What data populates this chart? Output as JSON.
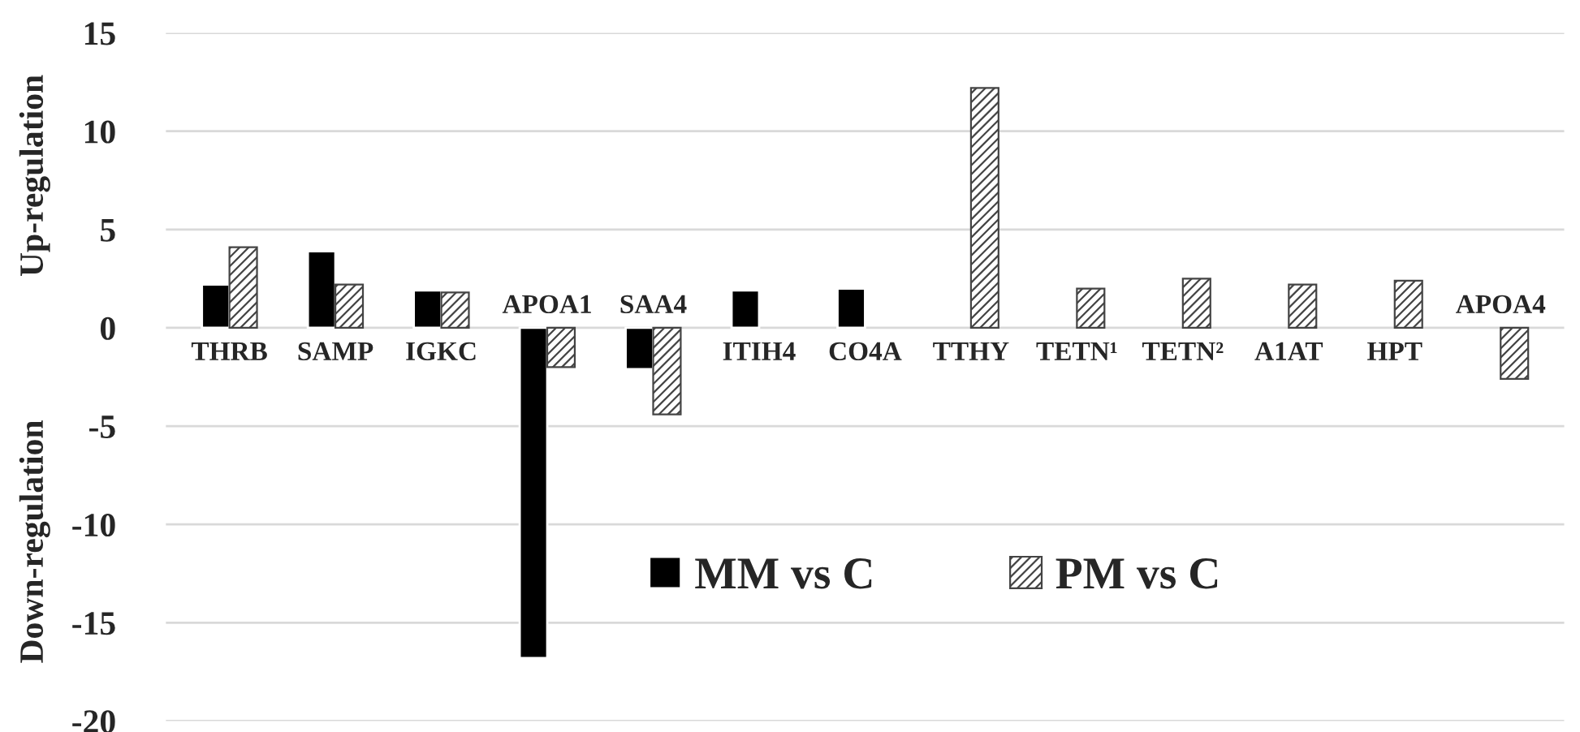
{
  "chart_data": {
    "type": "bar",
    "categories": [
      "THRB",
      "SAMP",
      "IGKC",
      "APOA1",
      "SAA4",
      "ITIH4",
      "CO4A",
      "TTHY",
      "TETN¹",
      "TETN²",
      "A1AT",
      "HPT",
      "APOA4"
    ],
    "series": [
      {
        "name": "MM vs C",
        "color": "#000000",
        "values": [
          2.2,
          3.9,
          1.9,
          -16.8,
          -2.1,
          1.9,
          2.0,
          null,
          null,
          null,
          null,
          null,
          null
        ]
      },
      {
        "name": "PM vs C",
        "color": "#444444",
        "values": [
          4.1,
          2.2,
          1.8,
          -2.0,
          -4.4,
          null,
          null,
          12.2,
          2.0,
          2.5,
          2.2,
          2.4,
          -2.6
        ]
      }
    ],
    "annotations": [
      "Up-regulation",
      "Down-regulation"
    ],
    "ylim": [
      -20,
      15
    ],
    "yticks": [
      -20,
      -15,
      -10,
      -5,
      0,
      5,
      10,
      15
    ],
    "grid": "y",
    "legend": "bottom"
  }
}
